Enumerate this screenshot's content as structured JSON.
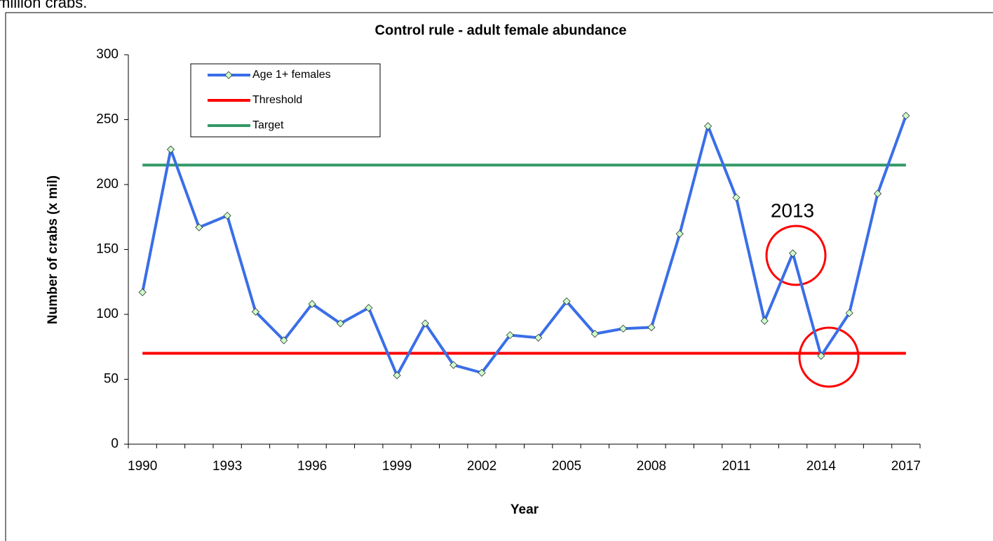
{
  "page_text": "million crabs.",
  "chart_data": {
    "type": "line",
    "title": "Control rule - adult female abundance",
    "x_label": "Year",
    "y_label": "Number of crabs (x mil)",
    "annotation": "2013",
    "categories": [
      "1990",
      null,
      null,
      "1993",
      null,
      null,
      "1996",
      null,
      null,
      "1999",
      null,
      null,
      "2002",
      null,
      null,
      "2005",
      null,
      null,
      "2008",
      null,
      null,
      "2011",
      null,
      null,
      "2014",
      null,
      null,
      "2017"
    ],
    "series": [
      {
        "name": "Age 1+  females",
        "color": "#3a6ee8",
        "marker": "diamond",
        "marker_color": "#ccffcc",
        "values": [
          117,
          227,
          167,
          176,
          102,
          80,
          108,
          93,
          105,
          53,
          93,
          61,
          55,
          84,
          82,
          110,
          85,
          89,
          90,
          162,
          245,
          190,
          95,
          147,
          68,
          101,
          193,
          253
        ]
      },
      {
        "name": "Threshold",
        "color": "#ff0000",
        "values": [
          70,
          70,
          70,
          70,
          70,
          70,
          70,
          70,
          70,
          70,
          70,
          70,
          70,
          70,
          70,
          70,
          70,
          70,
          70,
          70,
          70,
          70,
          70,
          70,
          70,
          70,
          70,
          70
        ]
      },
      {
        "name": "Target",
        "color": "#339966",
        "values": [
          215,
          215,
          215,
          215,
          215,
          215,
          215,
          215,
          215,
          215,
          215,
          215,
          215,
          215,
          215,
          215,
          215,
          215,
          215,
          215,
          215,
          215,
          215,
          215,
          215,
          215,
          215,
          215
        ]
      }
    ],
    "ylim": [
      0,
      300
    ],
    "yticks": [
      0,
      50,
      100,
      150,
      200,
      250,
      300
    ]
  }
}
